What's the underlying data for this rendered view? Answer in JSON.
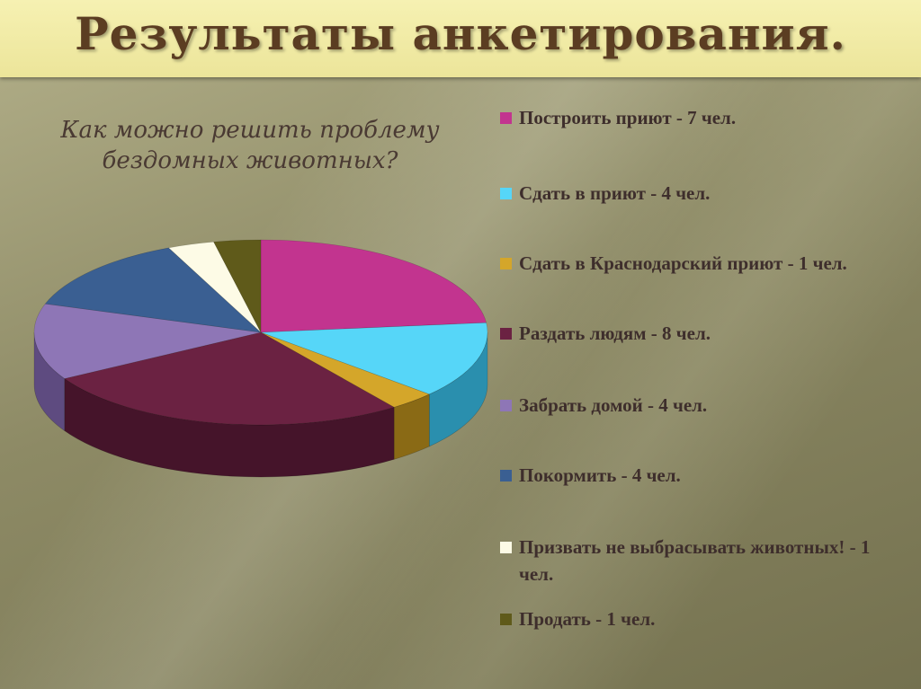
{
  "title": "Результаты анкетирования.",
  "chart_data": {
    "type": "pie",
    "title": "Как можно решить проблему бездомных животных?",
    "slices": [
      {
        "label": "Построить приют - 7 чел.",
        "value": 7,
        "color": "#c2348f",
        "side": "#8e1f66"
      },
      {
        "label": "Сдать в приют - 4 чел.",
        "value": 4,
        "color": "#56d6f8",
        "side": "#2a8fae"
      },
      {
        "label": "Сдать в Краснодарский приют - 1 чел.",
        "value": 1,
        "color": "#d4a62a",
        "side": "#8a6a15"
      },
      {
        "label": "Раздать людям - 8 чел.",
        "value": 8,
        "color": "#6b2242",
        "side": "#45142a"
      },
      {
        "label": "Забрать домой - 4 чел.",
        "value": 4,
        "color": "#8e76b6",
        "side": "#5e4b80"
      },
      {
        "label": "Покормить - 4 чел.",
        "value": 4,
        "color": "#3a5f92",
        "side": "#243d60"
      },
      {
        "label": "Призвать не выбрасывать животных! - 1 чел.",
        "value": 1,
        "color": "#fdfbe6",
        "side": "#c9c6ad"
      },
      {
        "label": "Продать - 1 чел.",
        "value": 1,
        "color": "#5f5a1a",
        "side": "#3d390f"
      }
    ],
    "legend_position": "right"
  }
}
